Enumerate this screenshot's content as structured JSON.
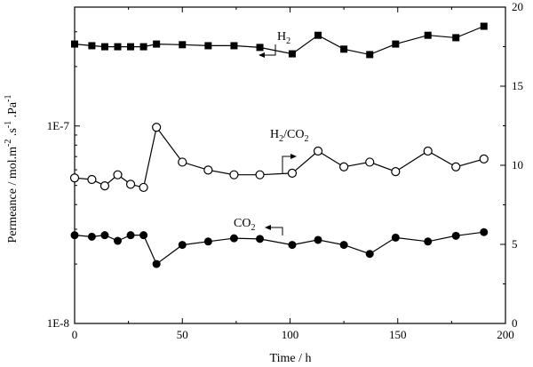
{
  "chart_data": {
    "type": "line",
    "xlabel": "Time / h",
    "ylabel_left": {
      "prefix": "Permeance / mol.m",
      "sup1": "-2",
      "mid1": " .s",
      "sup2": "-1",
      "mid2": " .Pa",
      "sup3": "-1"
    },
    "xlim": [
      0,
      200
    ],
    "ylim_left": [
      1e-08,
      4e-07
    ],
    "y_left_scale": "log",
    "ylim_right": [
      0,
      20
    ],
    "y_right_scale": "linear",
    "x_ticks": [
      "0",
      "50",
      "100",
      "150",
      "200"
    ],
    "y_left_ticks": [
      {
        "value": 1e-08,
        "label": "1E-8"
      },
      {
        "value": 1e-07,
        "label": "1E-7"
      }
    ],
    "y_right_ticks": [
      "0",
      "5",
      "10",
      "15",
      "20"
    ],
    "series": [
      {
        "axis": "left",
        "marker": "filled-square",
        "x": [
          0,
          8,
          14,
          20,
          26,
          32,
          38,
          50,
          62,
          74,
          86,
          101,
          113,
          125,
          137,
          149,
          164,
          177,
          190
        ],
        "y": [
          2.6e-07,
          2.55e-07,
          2.52e-07,
          2.52e-07,
          2.52e-07,
          2.52e-07,
          2.6e-07,
          2.58e-07,
          2.55e-07,
          2.55e-07,
          2.5e-07,
          2.32e-07,
          2.88e-07,
          2.45e-07,
          2.3e-07,
          2.6e-07,
          2.88e-07,
          2.8e-07,
          3.2e-07
        ]
      },
      {
        "axis": "right",
        "marker": "open-circle",
        "x": [
          0,
          8,
          14,
          20,
          26,
          32,
          38,
          50,
          62,
          74,
          86,
          101,
          113,
          125,
          137,
          149,
          164,
          177,
          190
        ],
        "y": [
          9.2,
          9.1,
          8.7,
          9.4,
          8.8,
          8.6,
          12.4,
          10.2,
          9.7,
          9.4,
          9.4,
          9.5,
          10.9,
          9.9,
          10.2,
          9.6,
          10.9,
          9.9,
          10.4
        ]
      },
      {
        "axis": "left",
        "marker": "filled-circle",
        "x": [
          0,
          8,
          14,
          20,
          26,
          32,
          38,
          50,
          62,
          74,
          86,
          101,
          113,
          125,
          137,
          149,
          164,
          177,
          190
        ],
        "y": [
          2.8e-08,
          2.75e-08,
          2.8e-08,
          2.62e-08,
          2.8e-08,
          2.8e-08,
          2e-08,
          2.5e-08,
          2.6e-08,
          2.7e-08,
          2.68e-08,
          2.5e-08,
          2.65e-08,
          2.5e-08,
          2.25e-08,
          2.72e-08,
          2.6e-08,
          2.78e-08,
          2.9e-08
        ]
      }
    ],
    "annotations": {
      "h2": {
        "main": "H",
        "sub": "2",
        "arrow": "left"
      },
      "ratio": {
        "a": "H",
        "a_sub": "2",
        "slash": "/CO",
        "b_sub": "2",
        "arrow": "right"
      },
      "co2": {
        "main": "CO",
        "sub": "2",
        "arrow": "left"
      }
    },
    "grid": false,
    "legend": "none"
  }
}
